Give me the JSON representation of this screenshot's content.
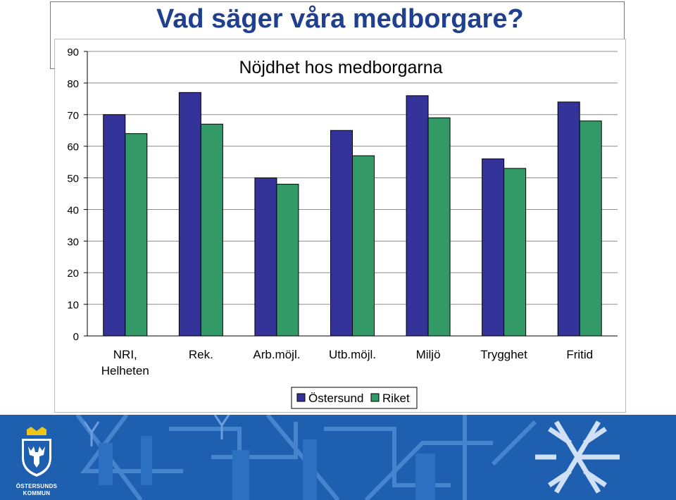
{
  "slide": {
    "title": "Vad säger våra medborgare?"
  },
  "logo": {
    "line1": "ÖSTERSUNDS",
    "line2": "KOMMUN"
  },
  "colors": {
    "series_ostersund": "#33339a",
    "series_riket": "#339966",
    "title": "#1f3f8f",
    "band": "#1f5fb0"
  },
  "chart_data": {
    "type": "bar",
    "title": "Nöjdhet hos medborgarna",
    "categories": [
      "NRI, Helheten",
      "Rek.",
      "Arb.möjl.",
      "Utb.möjl.",
      "Miljö",
      "Trygghet",
      "Fritid"
    ],
    "series": [
      {
        "name": "Östersund",
        "values": [
          70,
          77,
          50,
          65,
          76,
          56,
          74
        ]
      },
      {
        "name": "Riket",
        "values": [
          64,
          67,
          48,
          57,
          69,
          53,
          68
        ]
      }
    ],
    "ylim": [
      0,
      90
    ],
    "yticks": [
      0,
      10,
      20,
      30,
      40,
      50,
      60,
      70,
      80,
      90
    ],
    "grid": true,
    "legend": "bottom",
    "xlabel": "",
    "ylabel": ""
  }
}
